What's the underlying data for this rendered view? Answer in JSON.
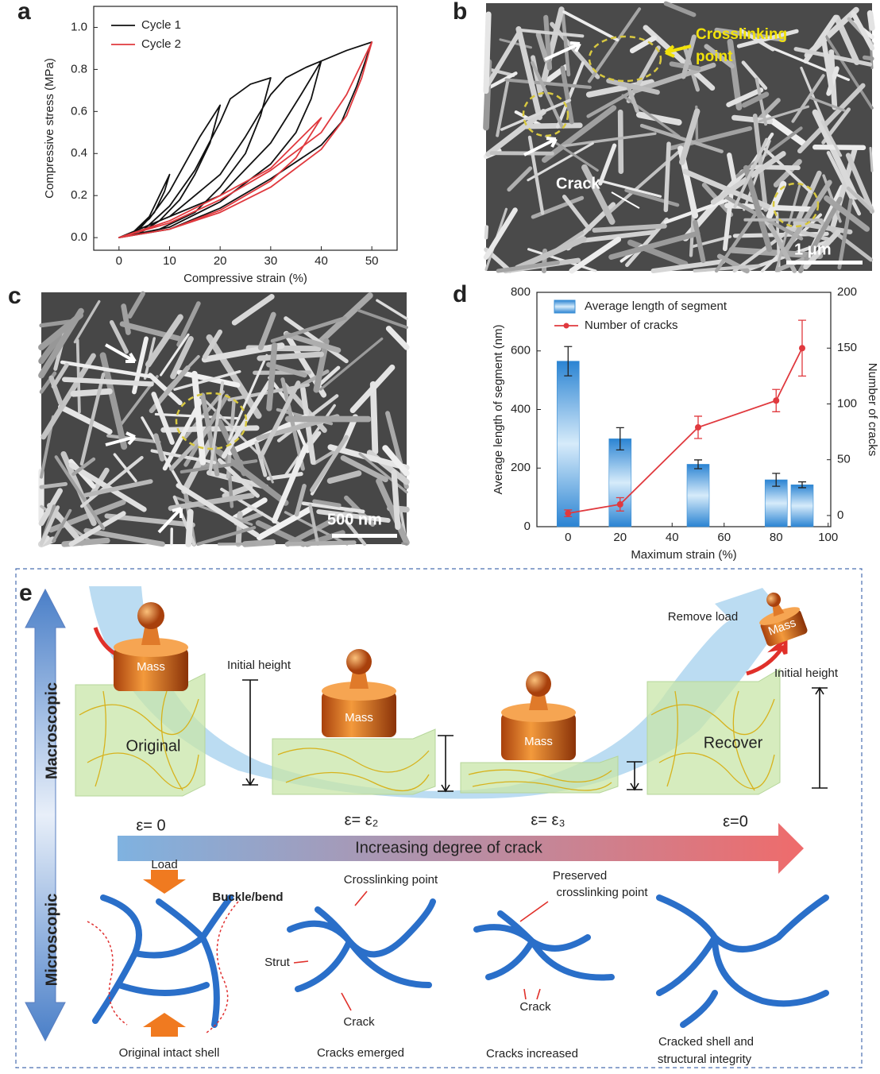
{
  "chart_data": [
    {
      "type": "line",
      "xlabel": "Compressive strain (%)",
      "ylabel": "Compressive stress (MPa)",
      "xlim": [
        -5,
        55
      ],
      "ylim": [
        -0.06,
        1.1
      ],
      "xticks": [
        0,
        10,
        20,
        30,
        40,
        50
      ],
      "yticks": [
        {
          "value": 0,
          "label": "0.0"
        },
        0.2,
        0.4,
        0.6,
        0.8,
        {
          "value": 1,
          "label": "1.0"
        }
      ],
      "legend": "upper left",
      "series": [
        {
          "name": "Cycle 1",
          "color": "#111111",
          "x": [
            0,
            3,
            6,
            8,
            10,
            9,
            7,
            4,
            0,
            3,
            6,
            10,
            13,
            16,
            20,
            18,
            15,
            12,
            8,
            4,
            0,
            5,
            10,
            15,
            20,
            22,
            26,
            30,
            28,
            25,
            20,
            15,
            8,
            0,
            10,
            20,
            25,
            30,
            33,
            37,
            40,
            38,
            35,
            30,
            20,
            10,
            0,
            20,
            30,
            36,
            40,
            45,
            50,
            47,
            44,
            40,
            30,
            20,
            10,
            0
          ],
          "values": [
            0,
            0.03,
            0.1,
            0.2,
            0.3,
            0.22,
            0.12,
            0.04,
            0,
            0.03,
            0.09,
            0.22,
            0.35,
            0.48,
            0.63,
            0.45,
            0.3,
            0.18,
            0.08,
            0.02,
            0,
            0.04,
            0.15,
            0.32,
            0.55,
            0.66,
            0.73,
            0.76,
            0.58,
            0.4,
            0.24,
            0.12,
            0.04,
            0,
            0.1,
            0.3,
            0.48,
            0.68,
            0.76,
            0.81,
            0.84,
            0.66,
            0.5,
            0.35,
            0.17,
            0.05,
            0,
            0.2,
            0.45,
            0.68,
            0.84,
            0.89,
            0.93,
            0.72,
            0.55,
            0.44,
            0.28,
            0.14,
            0.04,
            0
          ]
        },
        {
          "name": "Cycle 2",
          "color": "#e0393e",
          "x": [
            0,
            10,
            20,
            30,
            40,
            35,
            30,
            20,
            10,
            0,
            10,
            20,
            30,
            40,
            45,
            50,
            48,
            45,
            40,
            30,
            20,
            10,
            0
          ],
          "values": [
            0,
            0.08,
            0.2,
            0.33,
            0.57,
            0.38,
            0.27,
            0.13,
            0.04,
            0,
            0.07,
            0.18,
            0.32,
            0.5,
            0.68,
            0.93,
            0.76,
            0.58,
            0.42,
            0.24,
            0.12,
            0.04,
            0
          ]
        }
      ]
    },
    {
      "type": "bar",
      "xlabel": "Maximum strain (%)",
      "ylabel": "Average length of segment (nm)",
      "y2label": "Number of cracks",
      "xlim": [
        -12,
        101
      ],
      "ylim": [
        0,
        800
      ],
      "y2lim": [
        -10,
        200
      ],
      "xticks": [
        0,
        20,
        40,
        60,
        80,
        100
      ],
      "yticks": [
        0,
        200,
        400,
        600,
        800
      ],
      "y2ticks": [
        0,
        50,
        100,
        150,
        200
      ],
      "legend": "upper left",
      "x": [
        0,
        20,
        50,
        80,
        90
      ],
      "series": [
        {
          "name": "Average length of segment",
          "type": "bar",
          "color": "#3b8fd4",
          "values": [
            565,
            300,
            213,
            160,
            143
          ],
          "errors": [
            50,
            38,
            15,
            22,
            10
          ]
        },
        {
          "name": "Number of cracks",
          "type": "line",
          "axis": "y2",
          "color": "#e0393e",
          "values": [
            2,
            10,
            79,
            103,
            150
          ],
          "errors": [
            3,
            6,
            10,
            10,
            25
          ]
        }
      ]
    }
  ],
  "panel_labels": [
    "a",
    "b",
    "c",
    "d",
    "e"
  ],
  "sem_b": {
    "annotation": [
      "Crosslinking",
      "point"
    ],
    "crack": "Crack",
    "scale_bar": "1 μm"
  },
  "sem_c": {
    "scale_bar": "500 nm"
  },
  "schematic": {
    "macroscopic": "Macroscopic",
    "microscopic": "Microscopic",
    "mass": [
      "Mass",
      "Mass",
      "Mass",
      "Mass"
    ],
    "initial_height": [
      "Initial height",
      "Initial height"
    ],
    "remove_load": "Remove load",
    "original": "Original",
    "recover": "Recover",
    "strains": [
      "ε= 0",
      "ε= ε₂",
      "ε= ε₃",
      "ε=0"
    ],
    "arrow": "Increasing degree of crack",
    "load": "Load",
    "buckle": "Buckle/bend",
    "crosslinking": "Crosslinking point",
    "strut": "Strut",
    "crack": [
      "Crack",
      "Crack"
    ],
    "preserved": [
      "Preserved",
      "crosslinking point"
    ],
    "captions": [
      "Original intact shell",
      "Cracks emerged",
      "Cracks increased"
    ],
    "last_caption": [
      "Cracked shell and",
      "structural integrity"
    ]
  }
}
